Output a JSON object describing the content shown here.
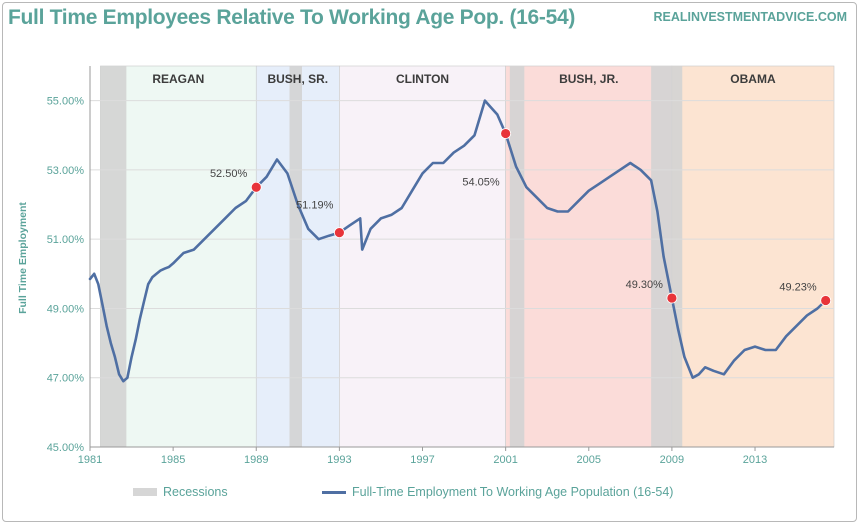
{
  "title": "Full Time Employees Relative To Working Age Pop. (16-54)",
  "source": "REALINVESTMENTADVICE.COM",
  "colors": {
    "accent_text": "#5aa39a",
    "line": "#4f6fa3",
    "marker": "#e8343a",
    "recession": "#d3d3d3"
  },
  "legend": {
    "recessions": "Recessions",
    "series": "Full-Time Employment To Working Age Population (16-54)"
  },
  "chart_data": {
    "type": "line",
    "title": "Full Time Employees Relative To Working Age Pop. (16-54)",
    "xlabel": "",
    "ylabel": "Full Time Employment",
    "xlim": [
      1981,
      2016.8
    ],
    "ylim": [
      45,
      56
    ],
    "y_ticks": [
      45,
      47,
      49,
      51,
      53,
      55
    ],
    "y_tick_labels": [
      "45.00%",
      "47.00%",
      "49.00%",
      "51.00%",
      "53.00%",
      "55.00%"
    ],
    "x_ticks": [
      1981,
      1985,
      1989,
      1993,
      1997,
      2001,
      2005,
      2009,
      2013
    ],
    "x_tick_labels": [
      "1981",
      "1985",
      "1989",
      "1993",
      "1997",
      "2001",
      "2005",
      "2009",
      "2013"
    ],
    "grid": true,
    "legend_position": "bottom",
    "presidencies": [
      {
        "label": "REAGAN",
        "start": 1981.5,
        "end": 1989.0,
        "color": "#eef8f3"
      },
      {
        "label": "BUSH, SR.",
        "start": 1989.0,
        "end": 1993.0,
        "color": "#e6eefa"
      },
      {
        "label": "CLINTON",
        "start": 1993.0,
        "end": 2001.0,
        "color": "#f8f2f8"
      },
      {
        "label": "BUSH, JR.",
        "start": 2001.0,
        "end": 2009.0,
        "color": "#fbdcd9"
      },
      {
        "label": "OBAMA",
        "start": 2009.0,
        "end": 2016.8,
        "color": "#fce4d2"
      }
    ],
    "recessions": [
      {
        "start": 1981.5,
        "end": 1982.75
      },
      {
        "start": 1990.6,
        "end": 1991.2
      },
      {
        "start": 2001.2,
        "end": 2001.9
      },
      {
        "start": 2008.0,
        "end": 2009.5
      }
    ],
    "series": [
      {
        "name": "Full-Time Employment To Working Age Population (16-54)",
        "x": [
          1981.0,
          1981.2,
          1981.4,
          1981.6,
          1981.8,
          1982.0,
          1982.2,
          1982.4,
          1982.6,
          1982.8,
          1983.0,
          1983.2,
          1983.4,
          1983.6,
          1983.8,
          1984.0,
          1984.2,
          1984.4,
          1984.6,
          1984.8,
          1985.0,
          1985.5,
          1986.0,
          1986.5,
          1987.0,
          1987.5,
          1988.0,
          1988.5,
          1989.0,
          1989.5,
          1990.0,
          1990.5,
          1991.0,
          1991.5,
          1992.0,
          1992.5,
          1993.0,
          1993.5,
          1994.0,
          1994.1,
          1994.5,
          1995.0,
          1995.5,
          1996.0,
          1996.5,
          1997.0,
          1997.5,
          1998.0,
          1998.5,
          1999.0,
          1999.5,
          2000.0,
          2000.3,
          2000.6,
          2001.0,
          2001.5,
          2002.0,
          2002.5,
          2003.0,
          2003.5,
          2004.0,
          2004.5,
          2005.0,
          2005.5,
          2006.0,
          2006.5,
          2007.0,
          2007.5,
          2008.0,
          2008.3,
          2008.6,
          2009.0,
          2009.3,
          2009.6,
          2010.0,
          2010.3,
          2010.6,
          2011.0,
          2011.5,
          2012.0,
          2012.5,
          2013.0,
          2013.5,
          2014.0,
          2014.5,
          2015.0,
          2015.5,
          2016.0,
          2016.4
        ],
        "y": [
          49.85,
          50.0,
          49.7,
          49.1,
          48.5,
          48.0,
          47.6,
          47.1,
          46.9,
          47.0,
          47.6,
          48.1,
          48.7,
          49.2,
          49.7,
          49.9,
          50.0,
          50.1,
          50.15,
          50.2,
          50.3,
          50.6,
          50.7,
          51.0,
          51.3,
          51.6,
          51.9,
          52.1,
          52.5,
          52.8,
          53.3,
          52.9,
          52.0,
          51.3,
          51.0,
          51.1,
          51.19,
          51.4,
          51.6,
          50.7,
          51.3,
          51.6,
          51.7,
          51.9,
          52.4,
          52.9,
          53.2,
          53.2,
          53.5,
          53.7,
          54.0,
          55.0,
          54.8,
          54.6,
          54.05,
          53.1,
          52.5,
          52.2,
          51.9,
          51.8,
          51.8,
          52.1,
          52.4,
          52.6,
          52.8,
          53.0,
          53.2,
          53.0,
          52.7,
          51.8,
          50.5,
          49.3,
          48.4,
          47.6,
          47.0,
          47.1,
          47.3,
          47.2,
          47.1,
          47.5,
          47.8,
          47.9,
          47.8,
          47.8,
          48.2,
          48.5,
          48.8,
          49.0,
          49.23
        ]
      }
    ],
    "annotations": [
      {
        "x": 1989.0,
        "y": 52.5,
        "label": "52.50%",
        "anchor": "left"
      },
      {
        "x": 1993.0,
        "y": 51.19,
        "label": "51.19%",
        "anchor": "above"
      },
      {
        "x": 2001.0,
        "y": 54.05,
        "label": "54.05%",
        "anchor": "below-left"
      },
      {
        "x": 2009.0,
        "y": 49.3,
        "label": "49.30%",
        "anchor": "left"
      },
      {
        "x": 2016.4,
        "y": 49.23,
        "label": "49.23%",
        "anchor": "left"
      }
    ]
  }
}
